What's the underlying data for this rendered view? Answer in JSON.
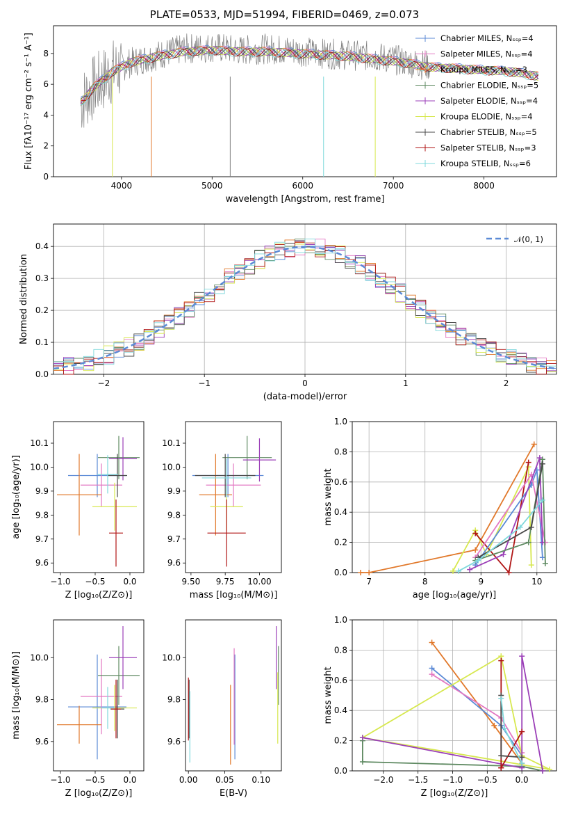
{
  "page_title": "PLATE=0533, MJD=51994, FIBERID=0469, z=0.073",
  "colors": {
    "chabrier_miles": "#5b8ad6",
    "salpeter_miles": "#e377c2",
    "kroupa_miles": "#e1782a",
    "chabrier_elodie": "#5f8a62",
    "salpeter_elodie": "#9b3fb8",
    "kroupa_elodie": "#d7e84f",
    "chabrier_stelib": "#4a4a4a",
    "salpeter_stelib": "#b01515",
    "kroupa_stelib": "#7fd8dc",
    "gauss": "#5b8ad6",
    "data": "#808080",
    "grid": "#b0b0b0"
  },
  "chart_data": [
    {
      "type": "line",
      "title": "",
      "xlabel": "wavelength [Angstrom, rest frame]",
      "ylabel": "Flux [fλ10⁻¹⁷ erg cm⁻² s⁻¹ A⁻¹]",
      "xlim": [
        3250,
        8800
      ],
      "ylim": [
        0,
        9.8
      ],
      "xticks": [
        4000,
        5000,
        6000,
        7000,
        8000
      ],
      "yticks": [
        0,
        2,
        4,
        6,
        8
      ],
      "legend_position": "top-right",
      "legend": [
        "Chabrier MILES, N_SSP=4",
        "Salpeter MILES, N_SSP=4",
        "Kroupa MILES, N_SSP=3",
        "Chabrier ELODIE, N_SSP=5",
        "Salpeter ELODIE, N_SSP=4",
        "Kroupa ELODIE, N_SSP=4",
        "Chabrier STELIB, N_SSP=5",
        "Salpeter STELIB, N_SSP=3",
        "Kroupa STELIB, N_SSP=6"
      ],
      "data_x": [
        3550,
        3700,
        3900,
        4100,
        4400,
        4700,
        5000,
        5300,
        5600,
        5900,
        6200,
        6500,
        6800,
        7100,
        7400,
        7700,
        8000,
        8300,
        8600
      ],
      "data_y": [
        4.8,
        5.8,
        6.8,
        7.4,
        7.9,
        8.3,
        8.4,
        8.2,
        8.3,
        8.2,
        8.0,
        7.9,
        7.8,
        7.5,
        7.2,
        7.1,
        7.0,
        6.8,
        6.6
      ],
      "model_y": [
        4.9,
        5.9,
        6.9,
        7.5,
        7.9,
        8.2,
        8.3,
        8.2,
        8.2,
        8.1,
        8.0,
        7.9,
        7.7,
        7.5,
        7.2,
        7.1,
        7.0,
        6.9,
        6.6
      ]
    },
    {
      "type": "bar",
      "title": "",
      "xlabel": "(data-model)/error",
      "ylabel": "Normed distribution",
      "xlim": [
        -2.5,
        2.5
      ],
      "ylim": [
        0,
        0.47
      ],
      "xticks": [
        -2,
        -1,
        0,
        1,
        2
      ],
      "yticks": [
        0.0,
        0.1,
        0.2,
        0.3,
        0.4
      ],
      "legend": [
        "𝒩(0, 1)"
      ],
      "legend_position": "top-right",
      "bin_width": 0.1
    },
    {
      "type": "scatter",
      "xlabel": "Z [log₁₀(Z/Z⊙)]",
      "ylabel": "age  [log₁₀(age/yr)]",
      "xlim": [
        -1.1,
        0.2
      ],
      "ylim": [
        9.56,
        10.19
      ],
      "xticks": [
        -1.0,
        -0.5,
        0.0
      ],
      "yticks": [
        9.6,
        9.7,
        9.8,
        9.9,
        10.0,
        10.1
      ],
      "points": [
        {
          "c": "chabrier_miles",
          "x": -0.47,
          "y": 9.965,
          "xe": 0.42,
          "ye": 0.09
        },
        {
          "c": "salpeter_miles",
          "x": -0.41,
          "y": 9.925,
          "xe": 0.3,
          "ye": 0.09
        },
        {
          "c": "kroupa_miles",
          "x": -0.73,
          "y": 9.885,
          "xe": 0.32,
          "ye": 0.17
        },
        {
          "c": "chabrier_elodie",
          "x": -0.16,
          "y": 10.04,
          "xe": 0.3,
          "ye": 0.09
        },
        {
          "c": "salpeter_elodie",
          "x": -0.1,
          "y": 10.035,
          "xe": 0.2,
          "ye": 0.09
        },
        {
          "c": "kroupa_elodie",
          "x": -0.22,
          "y": 9.835,
          "xe": 0.32,
          "ye": 0.1
        },
        {
          "c": "chabrier_stelib",
          "x": -0.18,
          "y": 9.965,
          "xe": 0.14,
          "ye": 0.09
        },
        {
          "c": "salpeter_stelib",
          "x": -0.2,
          "y": 9.725,
          "xe": 0.1,
          "ye": 0.14
        },
        {
          "c": "kroupa_stelib",
          "x": -0.32,
          "y": 9.97,
          "xe": 0.15,
          "ye": 0.08
        }
      ]
    },
    {
      "type": "scatter",
      "xlabel": "mass [log₁₀(M/M⊙)]",
      "xlim": [
        9.46,
        10.16
      ],
      "ylim": [
        9.56,
        10.19
      ],
      "xticks": [
        9.5,
        9.75,
        10.0
      ],
      "yticks": [
        9.6,
        9.7,
        9.8,
        9.9,
        10.0,
        10.1
      ],
      "points": [
        {
          "c": "chabrier_miles",
          "x": 9.77,
          "y": 9.965,
          "xe": 0.26,
          "ye": 0.09
        },
        {
          "c": "salpeter_miles",
          "x": 9.81,
          "y": 9.925,
          "xe": 0.2,
          "ye": 0.09
        },
        {
          "c": "kroupa_miles",
          "x": 9.68,
          "y": 9.885,
          "xe": 0.12,
          "ye": 0.17
        },
        {
          "c": "chabrier_elodie",
          "x": 9.91,
          "y": 10.04,
          "xe": 0.18,
          "ye": 0.09
        },
        {
          "c": "salpeter_elodie",
          "x": 10.0,
          "y": 10.03,
          "xe": 0.12,
          "ye": 0.09
        },
        {
          "c": "kroupa_elodie",
          "x": 9.76,
          "y": 9.835,
          "xe": 0.12,
          "ye": 0.1
        },
        {
          "c": "chabrier_stelib",
          "x": 9.75,
          "y": 9.965,
          "xe": 0.22,
          "ye": 0.09
        },
        {
          "c": "salpeter_stelib",
          "x": 9.76,
          "y": 9.725,
          "xe": 0.14,
          "ye": 0.14
        },
        {
          "c": "kroupa_stelib",
          "x": 9.76,
          "y": 9.955,
          "xe": 0.18,
          "ye": 0.08
        }
      ]
    },
    {
      "type": "line",
      "xlabel": "age  [log₁₀(age/yr)]",
      "ylabel": "mass weight",
      "xlim": [
        6.7,
        10.35
      ],
      "ylim": [
        0,
        1.0
      ],
      "xticks": [
        7,
        8,
        9,
        10
      ],
      "yticks": [
        0.0,
        0.2,
        0.4,
        0.6,
        0.8,
        1.0
      ],
      "series": [
        {
          "c": "kroupa_miles",
          "x": [
            6.85,
            7.0,
            8.9,
            9.95
          ],
          "y": [
            0.0,
            0.0,
            0.15,
            0.85
          ]
        },
        {
          "c": "kroupa_elodie",
          "x": [
            8.5,
            8.9,
            9.1,
            9.85,
            9.9
          ],
          "y": [
            0.01,
            0.28,
            0.12,
            0.7,
            0.05
          ]
        },
        {
          "c": "salpeter_stelib",
          "x": [
            8.9,
            9.5,
            9.85
          ],
          "y": [
            0.26,
            0.0,
            0.73
          ]
        },
        {
          "c": "chabrier_miles",
          "x": [
            8.9,
            9.9,
            10.0,
            10.1
          ],
          "y": [
            0.05,
            0.58,
            0.68,
            0.1
          ]
        },
        {
          "c": "salpeter_miles",
          "x": [
            8.9,
            9.9,
            10.15
          ],
          "y": [
            0.1,
            0.65,
            0.2
          ]
        },
        {
          "c": "salpeter_elodie",
          "x": [
            8.8,
            9.4,
            10.05,
            10.1
          ],
          "y": [
            0.02,
            0.12,
            0.76,
            0.2
          ]
        },
        {
          "c": "chabrier_elodie",
          "x": [
            8.9,
            9.85,
            10.1,
            10.15
          ],
          "y": [
            0.08,
            0.2,
            0.75,
            0.06
          ]
        },
        {
          "c": "chabrier_stelib",
          "x": [
            8.95,
            9.9,
            10.1
          ],
          "y": [
            0.1,
            0.3,
            0.72
          ]
        },
        {
          "c": "kroupa_stelib",
          "x": [
            8.6,
            8.95,
            9.7,
            10.1
          ],
          "y": [
            0.01,
            0.08,
            0.3,
            0.48
          ]
        }
      ]
    },
    {
      "type": "scatter",
      "xlabel": "Z [log₁₀(Z/Z⊙)]",
      "ylabel": "mass [log₁₀(M/M⊙)]",
      "xlim": [
        -1.1,
        0.2
      ],
      "ylim": [
        9.46,
        10.18
      ],
      "xticks": [
        -1.0,
        -0.5,
        0.0
      ],
      "yticks": [
        9.6,
        9.8,
        10.0
      ],
      "points": [
        {
          "c": "chabrier_miles",
          "x": -0.47,
          "y": 9.765,
          "xe": 0.42,
          "ye": 0.25
        },
        {
          "c": "salpeter_miles",
          "x": -0.41,
          "y": 9.815,
          "xe": 0.3,
          "ye": 0.18
        },
        {
          "c": "kroupa_miles",
          "x": -0.73,
          "y": 9.68,
          "xe": 0.32,
          "ye": 0.09
        },
        {
          "c": "chabrier_elodie",
          "x": -0.16,
          "y": 9.915,
          "xe": 0.3,
          "ye": 0.14
        },
        {
          "c": "salpeter_elodie",
          "x": -0.1,
          "y": 10.0,
          "xe": 0.2,
          "ye": 0.15
        },
        {
          "c": "kroupa_elodie",
          "x": -0.22,
          "y": 9.76,
          "xe": 0.32,
          "ye": 0.11
        },
        {
          "c": "chabrier_stelib",
          "x": -0.18,
          "y": 9.755,
          "xe": 0.1,
          "ye": 0.14
        },
        {
          "c": "salpeter_stelib",
          "x": -0.2,
          "y": 9.755,
          "xe": 0.07,
          "ye": 0.14
        },
        {
          "c": "kroupa_stelib",
          "x": -0.32,
          "y": 9.76,
          "xe": 0.1,
          "ye": 0.1
        }
      ]
    },
    {
      "type": "scatter",
      "xlabel": "E(B-V)",
      "xlim": [
        -0.004,
        0.128
      ],
      "ylim": [
        9.46,
        10.18
      ],
      "xticks": [
        0.0,
        0.05,
        0.1
      ],
      "yticks": [
        9.6,
        9.8,
        10.0
      ],
      "points": [
        {
          "c": "chabrier_miles",
          "x": 0.064,
          "y": 9.765,
          "xe": 0,
          "ye": 0.25
        },
        {
          "c": "salpeter_miles",
          "x": 0.063,
          "y": 9.815,
          "xe": 0,
          "ye": 0.23
        },
        {
          "c": "kroupa_miles",
          "x": 0.058,
          "y": 9.68,
          "xe": 0,
          "ye": 0.19
        },
        {
          "c": "chabrier_elodie",
          "x": 0.124,
          "y": 9.915,
          "xe": 0,
          "ye": 0.14
        },
        {
          "c": "salpeter_elodie",
          "x": 0.121,
          "y": 10.0,
          "xe": 0,
          "ye": 0.15
        },
        {
          "c": "kroupa_elodie",
          "x": 0.123,
          "y": 9.76,
          "xe": 0,
          "ye": 0.17
        },
        {
          "c": "chabrier_stelib",
          "x": 0.001,
          "y": 9.755,
          "xe": 0,
          "ye": 0.14
        },
        {
          "c": "salpeter_stelib",
          "x": 0.0,
          "y": 9.755,
          "xe": 0,
          "ye": 0.15
        },
        {
          "c": "kroupa_stelib",
          "x": 0.002,
          "y": 9.67,
          "xe": 0,
          "ye": 0.17
        }
      ]
    },
    {
      "type": "line",
      "xlabel": "Z [log₁₀(Z/Z⊙)]",
      "ylabel": "mass weight",
      "xlim": [
        -2.45,
        0.5
      ],
      "ylim": [
        0,
        1.0
      ],
      "xticks": [
        -2.0,
        -1.5,
        -1.0,
        -0.5,
        0.0
      ],
      "yticks": [
        0.0,
        0.2,
        0.4,
        0.6,
        0.8,
        1.0
      ],
      "series": [
        {
          "c": "kroupa_miles",
          "x": [
            -1.3,
            -0.4,
            0.0
          ],
          "y": [
            0.85,
            0.3,
            0.05
          ]
        },
        {
          "c": "chabrier_miles",
          "x": [
            -1.3,
            -0.3,
            0.0
          ],
          "y": [
            0.68,
            0.3,
            0.1
          ]
        },
        {
          "c": "salpeter_miles",
          "x": [
            -1.3,
            -0.3,
            0.0
          ],
          "y": [
            0.64,
            0.35,
            0.12
          ]
        },
        {
          "c": "kroupa_elodie",
          "x": [
            -2.3,
            -0.3,
            0.0,
            0.4,
            -2.3
          ],
          "y": [
            0.22,
            0.76,
            0.1,
            0.01,
            0.22
          ]
        },
        {
          "c": "chabrier_elodie",
          "x": [
            -2.3,
            -2.3,
            0.0,
            0.3
          ],
          "y": [
            0.2,
            0.06,
            0.03,
            0.0
          ]
        },
        {
          "c": "salpeter_elodie",
          "x": [
            -2.3,
            0.0,
            0.0,
            0.3
          ],
          "y": [
            0.22,
            0.02,
            0.76,
            0.0
          ]
        },
        {
          "c": "salpeter_stelib",
          "x": [
            -0.3,
            -0.3,
            0.0,
            -0.3
          ],
          "y": [
            0.73,
            0.02,
            0.26,
            0.02
          ]
        },
        {
          "c": "chabrier_stelib",
          "x": [
            -0.3,
            -0.3,
            0.0
          ],
          "y": [
            0.5,
            0.1,
            0.09
          ]
        },
        {
          "c": "kroupa_stelib",
          "x": [
            -0.3,
            -0.25,
            0.0
          ],
          "y": [
            0.48,
            0.28,
            0.05
          ]
        }
      ]
    }
  ]
}
